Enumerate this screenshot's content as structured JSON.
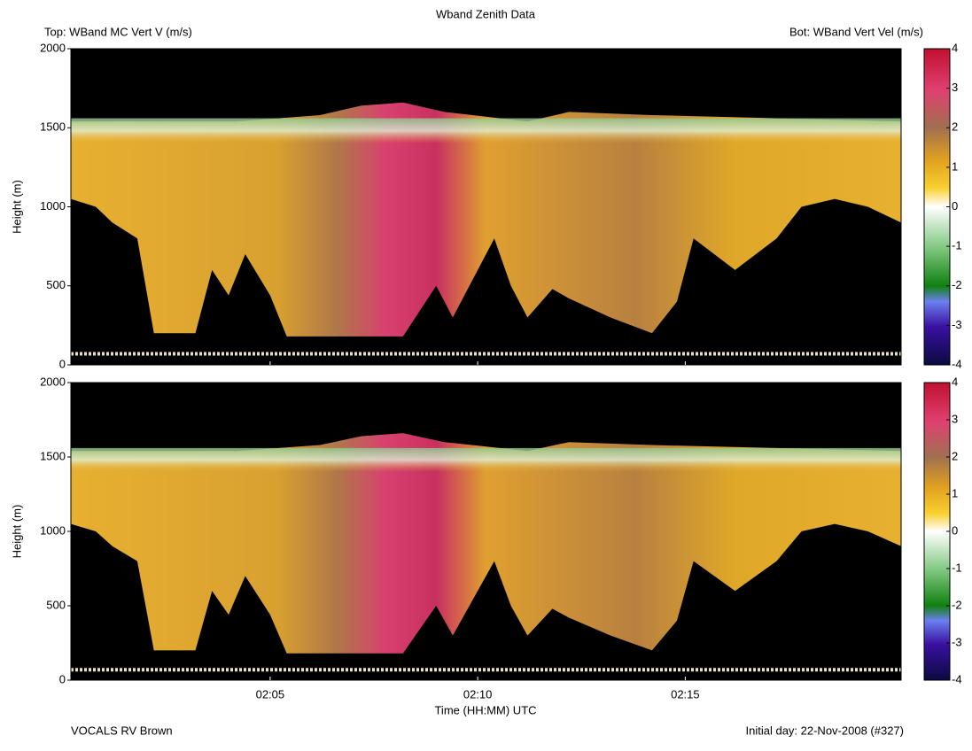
{
  "title": "Wband Zenith Data",
  "top_label": "Top: WBand MC Vert V (m/s)",
  "bottom_label": "Bot: WBand Vert Vel (m/s)",
  "panels": [
    {
      "ylabel": "Height (m)",
      "ylim": [
        0,
        2000
      ],
      "yticks": [
        0,
        500,
        1000,
        1500,
        2000
      ],
      "colorbar": {
        "lim": [
          -4,
          4
        ],
        "ticks": [
          -4,
          -3,
          -2,
          -1,
          0,
          1,
          2,
          3,
          4
        ]
      }
    },
    {
      "ylabel": "Height (m)",
      "ylim": [
        0,
        2000
      ],
      "yticks": [
        0,
        500,
        1000,
        1500,
        2000
      ],
      "colorbar": {
        "lim": [
          -4,
          4
        ],
        "ticks": [
          -4,
          -3,
          -2,
          -1,
          0,
          1,
          2,
          3,
          4
        ]
      }
    }
  ],
  "xaxis": {
    "label": "Time (HH:MM) UTC",
    "xlim": [
      120.2,
      140.2
    ],
    "xticks": [
      {
        "value": 125,
        "label": "02:05"
      },
      {
        "value": 130,
        "label": "02:10"
      },
      {
        "value": 135,
        "label": "02:15"
      }
    ]
  },
  "footer_left": "VOCALS RV Brown",
  "footer_right": "Initial day: 22-Nov-2008 (#327)"
}
